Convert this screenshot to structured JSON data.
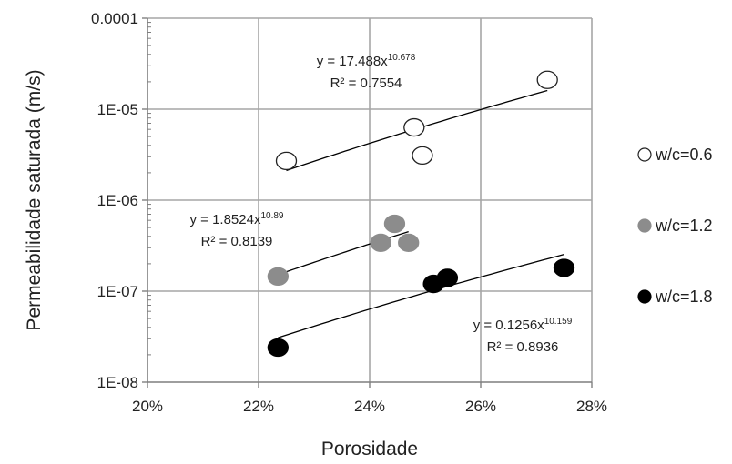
{
  "chart_data": {
    "type": "scatter",
    "xlabel": "Porosidade",
    "ylabel": "Permeabilidade saturada (m/s)",
    "x_scale": "linear",
    "y_scale": "log",
    "xlim": [
      0.2,
      0.28
    ],
    "ylim": [
      1e-08,
      0.0001
    ],
    "x_ticks": [
      0.2,
      0.22,
      0.24,
      0.26,
      0.28
    ],
    "x_tick_labels": [
      "20%",
      "22%",
      "24%",
      "26%",
      "28%"
    ],
    "y_ticks": [
      1e-08,
      1e-07,
      1e-06,
      1e-05,
      0.0001
    ],
    "y_tick_labels": [
      "1E-08",
      "1E-07",
      "1E-06",
      "1E-05",
      "0.0001"
    ],
    "grid": true,
    "legend_position": "right",
    "series": [
      {
        "name": "w/c=0.6",
        "marker_fill": "#ffffff",
        "marker_stroke": "#222222",
        "points": [
          {
            "x": 0.225,
            "y": 2.7e-06
          },
          {
            "x": 0.248,
            "y": 6.3e-06
          },
          {
            "x": 0.2495,
            "y": 3.1e-06
          },
          {
            "x": 0.272,
            "y": 2.1e-05
          }
        ],
        "trendline": {
          "type": "power",
          "a": 17.488,
          "b": 10.678,
          "x_range": [
            0.225,
            0.272
          ],
          "eq_base": "y = 17.488x",
          "eq_exp": "10.678",
          "r2": "R² = 0.7554"
        }
      },
      {
        "name": "w/c=1.2",
        "marker_fill": "#8c8c8c",
        "marker_stroke": "#8c8c8c",
        "points": [
          {
            "x": 0.2235,
            "y": 1.45e-07
          },
          {
            "x": 0.242,
            "y": 3.4e-07
          },
          {
            "x": 0.2445,
            "y": 5.5e-07
          },
          {
            "x": 0.247,
            "y": 3.4e-07
          }
        ],
        "trendline": {
          "type": "power",
          "a": 1.8524,
          "b": 10.89,
          "x_range": [
            0.2235,
            0.247
          ],
          "eq_base": "y = 1.8524x",
          "eq_exp": "10.89",
          "r2": "R² = 0.8139"
        }
      },
      {
        "name": "w/c=1.8",
        "marker_fill": "#000000",
        "marker_stroke": "#000000",
        "points": [
          {
            "x": 0.2235,
            "y": 2.4e-08
          },
          {
            "x": 0.2515,
            "y": 1.2e-07
          },
          {
            "x": 0.254,
            "y": 1.4e-07
          },
          {
            "x": 0.275,
            "y": 1.8e-07
          }
        ],
        "trendline": {
          "type": "power",
          "a": 0.1256,
          "b": 10.159,
          "x_range": [
            0.2235,
            0.275
          ],
          "eq_base": "y = 0.1256x",
          "eq_exp": "10.159",
          "r2": "R² = 0.8936"
        }
      }
    ]
  }
}
